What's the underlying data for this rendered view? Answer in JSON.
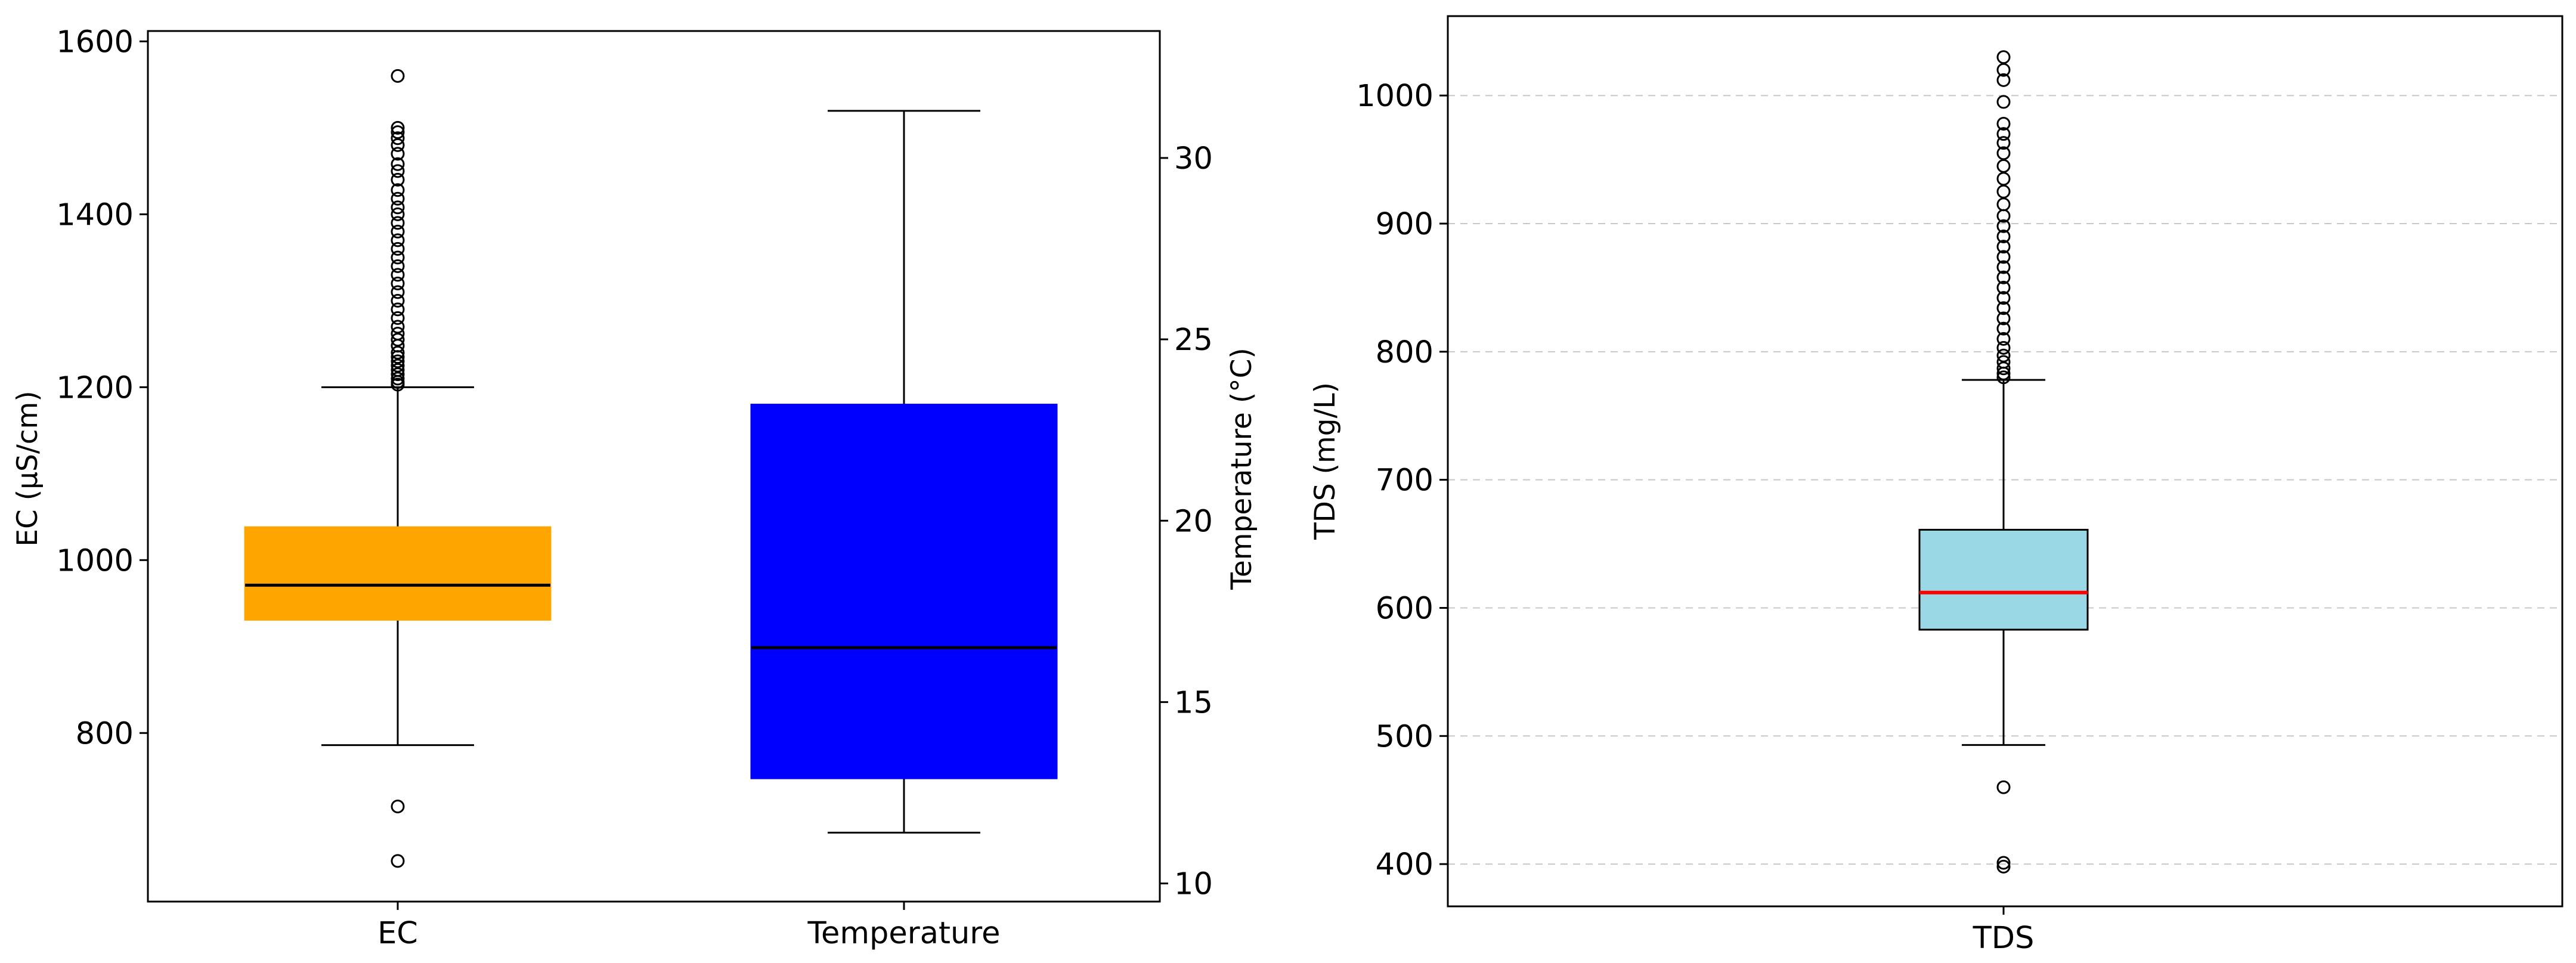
{
  "chart_data": [
    {
      "type": "box",
      "categories": [
        "EC",
        "Temperature"
      ],
      "ylabel": "EC (µS/cm)",
      "y2label": "Temperature (°C)",
      "ylim": [
        605,
        1612
      ],
      "yticks": [
        800,
        1000,
        1200,
        1400,
        1600
      ],
      "y2lim": [
        9.5,
        33.5
      ],
      "y2ticks": [
        10,
        15,
        20,
        25,
        30
      ],
      "grid": false,
      "series": [
        {
          "category": "EC",
          "axis": "left",
          "q1": 931,
          "median": 971,
          "q3": 1038,
          "whisker_low": 786,
          "whisker_high": 1200,
          "outliers_low": [
            715,
            652
          ],
          "outliers_high": [
            1203,
            1206,
            1210,
            1215,
            1220,
            1225,
            1230,
            1235,
            1240,
            1248,
            1255,
            1262,
            1270,
            1280,
            1290,
            1300,
            1310,
            1320,
            1330,
            1340,
            1350,
            1360,
            1370,
            1380,
            1390,
            1400,
            1408,
            1418,
            1428,
            1440,
            1450,
            1458,
            1470,
            1480,
            1488,
            1495,
            1500,
            1560
          ],
          "color": "#FFA500",
          "median_color": "#000000"
        },
        {
          "category": "Temperature",
          "axis": "right",
          "q1": 12.9,
          "median": 16.5,
          "q3": 23.2,
          "whisker_low": 11.4,
          "whisker_high": 31.3,
          "outliers_low": [],
          "outliers_high": [],
          "color": "#0000FF",
          "median_color": "#000000"
        }
      ]
    },
    {
      "type": "box",
      "categories": [
        "TDS"
      ],
      "ylabel": "TDS (mg/L)",
      "ylim": [
        367,
        1062
      ],
      "yticks": [
        400,
        500,
        600,
        700,
        800,
        900,
        1000
      ],
      "grid": true,
      "series": [
        {
          "category": "TDS",
          "q1": 583,
          "median": 612,
          "q3": 661,
          "whisker_low": 493,
          "whisker_high": 778,
          "outliers_low": [
            460,
            401,
            398
          ],
          "outliers_high": [
            780,
            783,
            787,
            792,
            797,
            803,
            810,
            818,
            826,
            834,
            842,
            850,
            858,
            866,
            874,
            882,
            890,
            898,
            906,
            915,
            925,
            935,
            945,
            955,
            963,
            970,
            978,
            995,
            1012,
            1020,
            1030
          ],
          "color": "#9AD8E6",
          "median_color": "#FF0000"
        }
      ]
    }
  ]
}
